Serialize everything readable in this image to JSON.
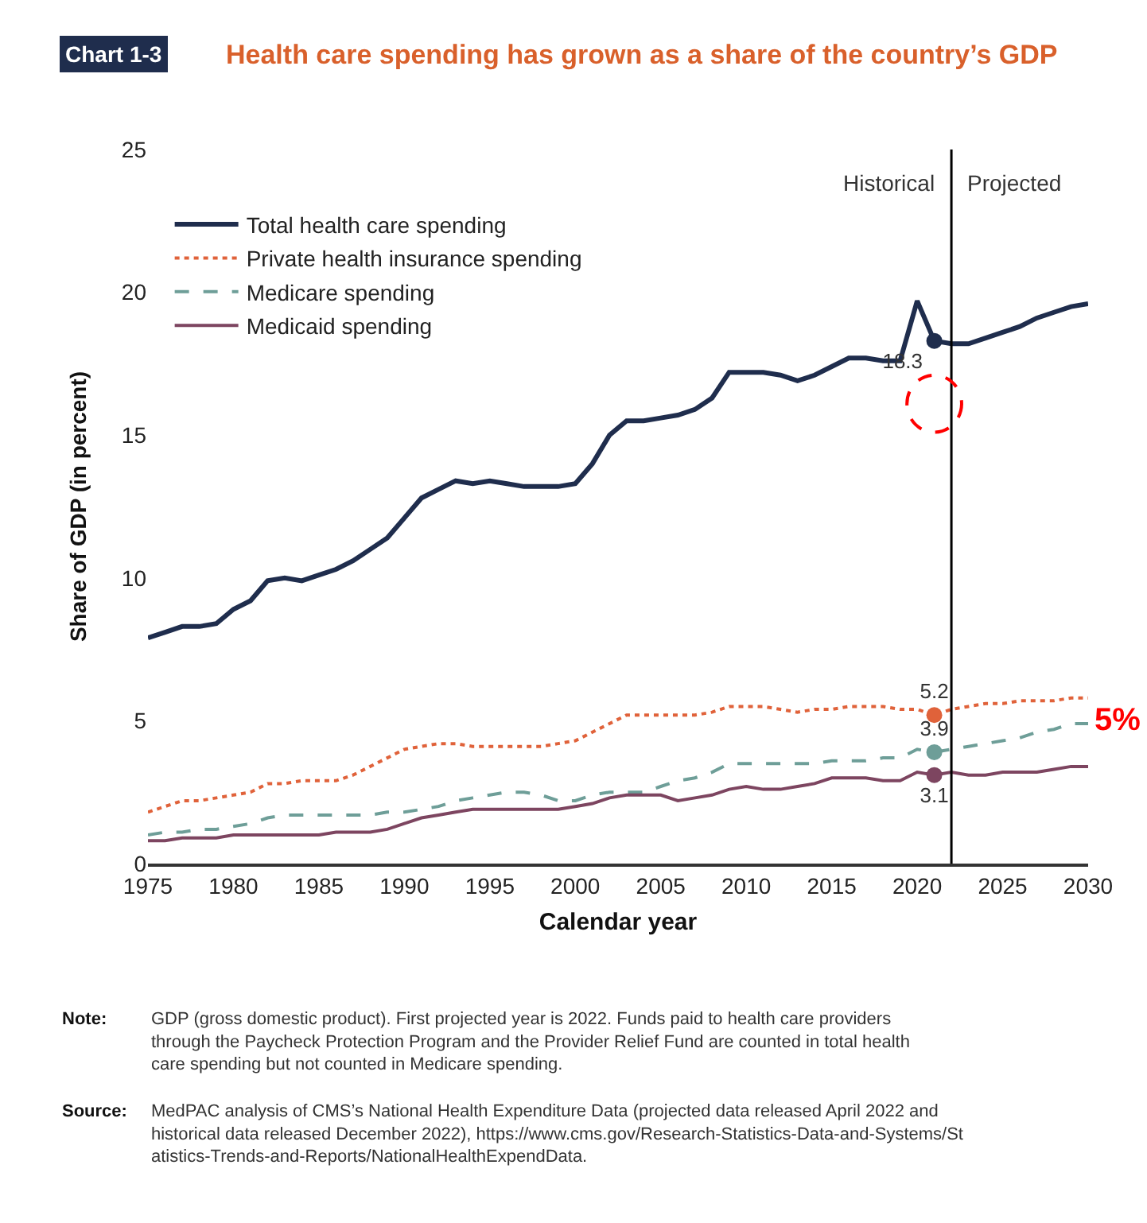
{
  "chart_data": {
    "type": "line",
    "title": "Health care spending has grown as a share of the country’s GDP",
    "xlabel": "Calendar year",
    "ylabel": "Share of GDP (in percent)",
    "x": [
      1975,
      1976,
      1977,
      1978,
      1979,
      1980,
      1981,
      1982,
      1983,
      1984,
      1985,
      1986,
      1987,
      1988,
      1989,
      1990,
      1991,
      1992,
      1993,
      1994,
      1995,
      1996,
      1997,
      1998,
      1999,
      2000,
      2001,
      2002,
      2003,
      2004,
      2005,
      2006,
      2007,
      2008,
      2009,
      2010,
      2011,
      2012,
      2013,
      2014,
      2015,
      2016,
      2017,
      2018,
      2019,
      2020,
      2021,
      2022,
      2023,
      2024,
      2025,
      2026,
      2027,
      2028,
      2029,
      2030
    ],
    "series": [
      {
        "name": "Total health care spending",
        "color": "#1f2d4d",
        "line_style": "solid",
        "values": [
          7.9,
          8.1,
          8.3,
          8.3,
          8.4,
          8.9,
          9.2,
          9.9,
          10.0,
          9.9,
          10.1,
          10.3,
          10.6,
          11.0,
          11.4,
          12.1,
          12.8,
          13.1,
          13.4,
          13.3,
          13.4,
          13.3,
          13.2,
          13.2,
          13.2,
          13.3,
          14.0,
          15.0,
          15.5,
          15.5,
          15.6,
          15.7,
          15.9,
          16.3,
          17.2,
          17.2,
          17.2,
          17.1,
          16.9,
          17.1,
          17.4,
          17.7,
          17.7,
          17.6,
          17.6,
          19.7,
          18.3,
          18.2,
          18.2,
          18.4,
          18.6,
          18.8,
          19.1,
          19.3,
          19.5,
          19.6
        ]
      },
      {
        "name": "Private health insurance spending",
        "color": "#e0623a",
        "line_style": "dotted",
        "values": [
          1.8,
          2.0,
          2.2,
          2.2,
          2.3,
          2.4,
          2.5,
          2.8,
          2.8,
          2.9,
          2.9,
          2.9,
          3.1,
          3.4,
          3.7,
          4.0,
          4.1,
          4.2,
          4.2,
          4.1,
          4.1,
          4.1,
          4.1,
          4.1,
          4.2,
          4.3,
          4.6,
          4.9,
          5.2,
          5.2,
          5.2,
          5.2,
          5.2,
          5.3,
          5.5,
          5.5,
          5.5,
          5.4,
          5.3,
          5.4,
          5.4,
          5.5,
          5.5,
          5.5,
          5.4,
          5.4,
          5.2,
          5.4,
          5.5,
          5.6,
          5.6,
          5.7,
          5.7,
          5.7,
          5.8,
          5.8
        ]
      },
      {
        "name": "Medicare spending",
        "color": "#6e9e98",
        "line_style": "dashed",
        "values": [
          1.0,
          1.1,
          1.1,
          1.2,
          1.2,
          1.3,
          1.4,
          1.6,
          1.7,
          1.7,
          1.7,
          1.7,
          1.7,
          1.7,
          1.8,
          1.8,
          1.9,
          2.0,
          2.2,
          2.3,
          2.4,
          2.5,
          2.5,
          2.4,
          2.2,
          2.2,
          2.4,
          2.5,
          2.5,
          2.5,
          2.7,
          2.9,
          3.0,
          3.2,
          3.5,
          3.5,
          3.5,
          3.5,
          3.5,
          3.5,
          3.6,
          3.6,
          3.6,
          3.7,
          3.7,
          4.0,
          3.9,
          4.0,
          4.1,
          4.2,
          4.3,
          4.4,
          4.6,
          4.7,
          4.9,
          4.9
        ]
      },
      {
        "name": "Medicaid spending",
        "color": "#7d4560",
        "line_style": "solid",
        "values": [
          0.8,
          0.8,
          0.9,
          0.9,
          0.9,
          1.0,
          1.0,
          1.0,
          1.0,
          1.0,
          1.0,
          1.1,
          1.1,
          1.1,
          1.2,
          1.4,
          1.6,
          1.7,
          1.8,
          1.9,
          1.9,
          1.9,
          1.9,
          1.9,
          1.9,
          2.0,
          2.1,
          2.3,
          2.4,
          2.4,
          2.4,
          2.2,
          2.3,
          2.4,
          2.6,
          2.7,
          2.6,
          2.6,
          2.7,
          2.8,
          3.0,
          3.0,
          3.0,
          2.9,
          2.9,
          3.2,
          3.1,
          3.2,
          3.1,
          3.1,
          3.2,
          3.2,
          3.2,
          3.3,
          3.4,
          3.4
        ]
      },
      {
        "type": "scatter",
        "marker": "circle",
        "color": "#1f2d4d",
        "values": [
          null,
          null,
          null,
          null,
          null,
          null,
          null,
          null,
          null,
          null,
          null,
          null,
          null,
          null,
          null,
          null,
          null,
          null,
          null,
          null,
          null,
          null,
          null,
          null,
          null,
          null,
          null,
          null,
          null,
          null,
          null,
          null,
          null,
          null,
          null,
          null,
          null,
          null,
          null,
          null,
          null,
          null,
          null,
          null,
          null,
          null,
          18.3,
          null,
          null,
          null,
          null,
          null,
          null,
          null,
          null,
          null
        ],
        "value_labels": [
          null,
          null,
          null,
          null,
          null,
          null,
          null,
          null,
          null,
          null,
          null,
          null,
          null,
          null,
          null,
          null,
          null,
          null,
          null,
          null,
          null,
          null,
          null,
          null,
          null,
          null,
          null,
          null,
          null,
          null,
          null,
          null,
          null,
          null,
          null,
          null,
          null,
          null,
          null,
          null,
          null,
          null,
          null,
          null,
          null,
          null,
          "18.3",
          null,
          null,
          null,
          null,
          null,
          null,
          null,
          null,
          null
        ]
      },
      {
        "type": "scatter",
        "marker": "circle",
        "color": "#e0623a",
        "values": [
          null,
          null,
          null,
          null,
          null,
          null,
          null,
          null,
          null,
          null,
          null,
          null,
          null,
          null,
          null,
          null,
          null,
          null,
          null,
          null,
          null,
          null,
          null,
          null,
          null,
          null,
          null,
          null,
          null,
          null,
          null,
          null,
          null,
          null,
          null,
          null,
          null,
          null,
          null,
          null,
          null,
          null,
          null,
          null,
          null,
          null,
          5.2,
          null,
          null,
          null,
          null,
          null,
          null,
          null,
          null,
          null
        ],
        "value_labels": [
          null,
          null,
          null,
          null,
          null,
          null,
          null,
          null,
          null,
          null,
          null,
          null,
          null,
          null,
          null,
          null,
          null,
          null,
          null,
          null,
          null,
          null,
          null,
          null,
          null,
          null,
          null,
          null,
          null,
          null,
          null,
          null,
          null,
          null,
          null,
          null,
          null,
          null,
          null,
          null,
          null,
          null,
          null,
          null,
          null,
          null,
          "5.2",
          null,
          null,
          null,
          null,
          null,
          null,
          null,
          null,
          null
        ]
      },
      {
        "type": "scatter",
        "marker": "circle",
        "color": "#6e9e98",
        "values": [
          null,
          null,
          null,
          null,
          null,
          null,
          null,
          null,
          null,
          null,
          null,
          null,
          null,
          null,
          null,
          null,
          null,
          null,
          null,
          null,
          null,
          null,
          null,
          null,
          null,
          null,
          null,
          null,
          null,
          null,
          null,
          null,
          null,
          null,
          null,
          null,
          null,
          null,
          null,
          null,
          null,
          null,
          null,
          null,
          null,
          null,
          3.9,
          null,
          null,
          null,
          null,
          null,
          null,
          null,
          null,
          null
        ],
        "value_labels": [
          null,
          null,
          null,
          null,
          null,
          null,
          null,
          null,
          null,
          null,
          null,
          null,
          null,
          null,
          null,
          null,
          null,
          null,
          null,
          null,
          null,
          null,
          null,
          null,
          null,
          null,
          null,
          null,
          null,
          null,
          null,
          null,
          null,
          null,
          null,
          null,
          null,
          null,
          null,
          null,
          null,
          null,
          null,
          null,
          null,
          null,
          "3.9",
          null,
          null,
          null,
          null,
          null,
          null,
          null,
          null,
          null
        ]
      },
      {
        "type": "scatter",
        "marker": "circle",
        "color": "#7d4560",
        "values": [
          null,
          null,
          null,
          null,
          null,
          null,
          null,
          null,
          null,
          null,
          null,
          null,
          null,
          null,
          null,
          null,
          null,
          null,
          null,
          null,
          null,
          null,
          null,
          null,
          null,
          null,
          null,
          null,
          null,
          null,
          null,
          null,
          null,
          null,
          null,
          null,
          null,
          null,
          null,
          null,
          null,
          null,
          null,
          null,
          null,
          null,
          3.1,
          null,
          null,
          null,
          null,
          null,
          null,
          null,
          null,
          null
        ],
        "value_labels": [
          null,
          null,
          null,
          null,
          null,
          null,
          null,
          null,
          null,
          null,
          null,
          null,
          null,
          null,
          null,
          null,
          null,
          null,
          null,
          null,
          null,
          null,
          null,
          null,
          null,
          null,
          null,
          null,
          null,
          null,
          null,
          null,
          null,
          null,
          null,
          null,
          null,
          null,
          null,
          null,
          null,
          null,
          null,
          null,
          null,
          null,
          "3.1",
          null,
          null,
          null,
          null,
          null,
          null,
          null,
          null,
          null
        ]
      }
    ],
    "xlim": [
      1975,
      2030
    ],
    "xticks": [
      1975,
      1980,
      1985,
      1990,
      1995,
      2000,
      2005,
      2010,
      2015,
      2020,
      2025,
      2030
    ],
    "ylim": [
      0,
      25
    ],
    "yticks": [
      0,
      5,
      10,
      15,
      20,
      25
    ],
    "ref_lines": [
      {
        "axis": "x",
        "value": 2022,
        "color": "#000000"
      }
    ],
    "annotations": [
      "Chart 1-3",
      "Historical",
      "Projected",
      "Note: GDP (gross domestic product). First projected year is 2022. Funds paid to health care providers through the Paycheck Protection Program and the Provider Relief Fund are counted in total health care spending but not counted in Medicare spending.",
      "Source: MedPAC analysis of CMS’s National Health Expenditure Data (projected data released April 2022 and historical data released December 2022), https://www.cms.gov/Research-Statistics-Data-and-Systems/Statistics-Trends-and-Reports/NationalHealthExpendData.",
      "5%"
    ],
    "legend": "top left",
    "marker": "none"
  }
}
